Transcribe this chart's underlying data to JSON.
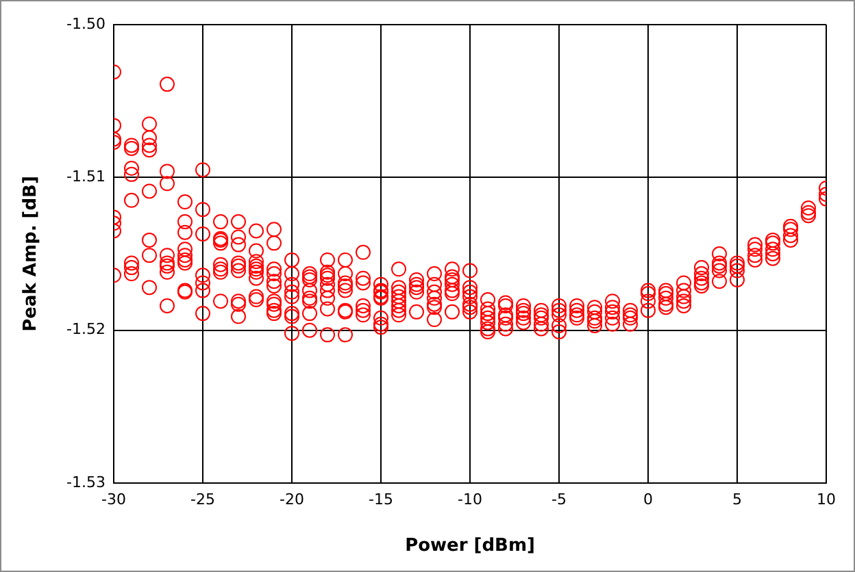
{
  "chart_data": {
    "type": "scatter",
    "xlabel": "Power [dBm]",
    "ylabel": "Peak Amp. [dB]",
    "xlim": [
      -30,
      10
    ],
    "xticks": [
      -30,
      -25,
      -20,
      -15,
      -10,
      -5,
      0,
      5,
      10
    ],
    "ylim": [
      -1.53,
      -1.5
    ],
    "yticks": [
      -1.53,
      -1.52,
      -1.51,
      {
        "value": -1.5,
        "label": "-1.50"
      }
    ],
    "grid": true,
    "legend": false,
    "marker": "circle",
    "series": [
      {
        "color": "#ff0000",
        "x": [
          -30,
          -30,
          -30,
          -30,
          -30,
          -30,
          -30,
          -30,
          -29,
          -29,
          -29,
          -29,
          -29,
          -29,
          -29,
          -29,
          -28,
          -28,
          -28,
          -28,
          -28,
          -28,
          -28,
          -28,
          -27,
          -27,
          -27,
          -27,
          -27,
          -27,
          -27,
          -27,
          -26,
          -26,
          -26,
          -26,
          -26,
          -26,
          -26,
          -26,
          -26,
          -25,
          -25,
          -25,
          -25,
          -25,
          -25,
          -25,
          -24,
          -24,
          -24,
          -24,
          -24,
          -24,
          -24,
          -24,
          -23,
          -23,
          -23,
          -23,
          -23,
          -23,
          -23,
          -23,
          -23,
          -22,
          -22,
          -22,
          -22,
          -22,
          -22,
          -22,
          -22,
          -22,
          -21,
          -21,
          -21,
          -21,
          -21,
          -21,
          -21,
          -21,
          -21,
          -21,
          -20,
          -20,
          -20,
          -20,
          -20,
          -20,
          -20,
          -20,
          -19,
          -19,
          -19,
          -19,
          -19,
          -19,
          -19,
          -19,
          -18,
          -18,
          -18,
          -18,
          -18,
          -18,
          -18,
          -18,
          -18,
          -17,
          -17,
          -17,
          -17,
          -17,
          -17,
          -17,
          -17,
          -16,
          -16,
          -16,
          -16,
          -16,
          -16,
          -15,
          -15,
          -15,
          -15,
          -15,
          -15,
          -15,
          -15,
          -14,
          -14,
          -14,
          -14,
          -14,
          -14,
          -14,
          -14,
          -13,
          -13,
          -13,
          -13,
          -13,
          -12,
          -12,
          -12,
          -12,
          -12,
          -12,
          -12,
          -11,
          -11,
          -11,
          -11,
          -11,
          -11,
          -11,
          -10,
          -10,
          -10,
          -10,
          -10,
          -10,
          -10,
          -9,
          -9,
          -9,
          -9,
          -9,
          -9,
          -9,
          -8,
          -8,
          -8,
          -8,
          -8,
          -8,
          -7,
          -7,
          -7,
          -7,
          -7,
          -6,
          -6,
          -6,
          -6,
          -6,
          -5,
          -5,
          -5,
          -5,
          -5,
          -4,
          -4,
          -4,
          -4,
          -3,
          -3,
          -3,
          -3,
          -3,
          -2,
          -2,
          -2,
          -2,
          -2,
          -1,
          -1,
          -1,
          -1,
          0,
          0,
          0,
          0,
          1,
          1,
          1,
          1,
          1,
          2,
          2,
          2,
          2,
          2,
          3,
          3,
          3,
          3,
          3,
          4,
          4,
          4,
          4,
          4,
          5,
          5,
          5,
          5,
          6,
          6,
          6,
          6,
          7,
          7,
          7,
          7,
          7,
          8,
          8,
          8,
          8,
          9,
          9,
          9,
          10,
          10,
          10
        ],
        "values": [
          -1.5031,
          -1.5066,
          -1.5075,
          -1.5077,
          -1.5126,
          -1.513,
          -1.5135,
          -1.5164,
          -1.5079,
          -1.5081,
          -1.5094,
          -1.5098,
          -1.5115,
          -1.5156,
          -1.5159,
          -1.5163,
          -1.5065,
          -1.5074,
          -1.5079,
          -1.5082,
          -1.5109,
          -1.5141,
          -1.5151,
          -1.5172,
          -1.5039,
          -1.5096,
          -1.5104,
          -1.5151,
          -1.5156,
          -1.5158,
          -1.5162,
          -1.5184,
          -1.5116,
          -1.5129,
          -1.5136,
          -1.5147,
          -1.5151,
          -1.5154,
          -1.5156,
          -1.5174,
          -1.5175,
          -1.5095,
          -1.5121,
          -1.5137,
          -1.5164,
          -1.5169,
          -1.5174,
          -1.5189,
          -1.5129,
          -1.514,
          -1.5141,
          -1.5143,
          -1.5157,
          -1.516,
          -1.5162,
          -1.5181,
          -1.5129,
          -1.5139,
          -1.5144,
          -1.5156,
          -1.5158,
          -1.5161,
          -1.5181,
          -1.5183,
          -1.5191,
          -1.5135,
          -1.5148,
          -1.5155,
          -1.5158,
          -1.516,
          -1.5162,
          -1.5166,
          -1.5178,
          -1.518,
          -1.5134,
          -1.5143,
          -1.516,
          -1.5163,
          -1.5168,
          -1.5171,
          -1.5181,
          -1.5183,
          -1.5187,
          -1.5189,
          -1.5154,
          -1.5163,
          -1.517,
          -1.5175,
          -1.5178,
          -1.5189,
          -1.5191,
          -1.5202,
          -1.5163,
          -1.5165,
          -1.5167,
          -1.5174,
          -1.5179,
          -1.5181,
          -1.5189,
          -1.52,
          -1.5154,
          -1.5162,
          -1.5164,
          -1.5166,
          -1.517,
          -1.5174,
          -1.5179,
          -1.5186,
          -1.5203,
          -1.5154,
          -1.5163,
          -1.5169,
          -1.5171,
          -1.5174,
          -1.5187,
          -1.5188,
          -1.5203,
          -1.5149,
          -1.5166,
          -1.5169,
          -1.5184,
          -1.5187,
          -1.519,
          -1.517,
          -1.5174,
          -1.5175,
          -1.5178,
          -1.5179,
          -1.5192,
          -1.5196,
          -1.5198,
          -1.516,
          -1.5172,
          -1.5175,
          -1.5178,
          -1.5181,
          -1.5184,
          -1.5187,
          -1.519,
          -1.5167,
          -1.517,
          -1.5172,
          -1.5175,
          -1.5188,
          -1.5163,
          -1.517,
          -1.5175,
          -1.5179,
          -1.5183,
          -1.5185,
          -1.5193,
          -1.516,
          -1.5165,
          -1.5167,
          -1.517,
          -1.5174,
          -1.5176,
          -1.5188,
          -1.5161,
          -1.5172,
          -1.5175,
          -1.5178,
          -1.5183,
          -1.5185,
          -1.5188,
          -1.518,
          -1.5186,
          -1.5189,
          -1.5192,
          -1.5195,
          -1.5199,
          -1.5201,
          -1.5182,
          -1.5184,
          -1.519,
          -1.5192,
          -1.5196,
          -1.5199,
          -1.5184,
          -1.5187,
          -1.5189,
          -1.5192,
          -1.5195,
          -1.5187,
          -1.519,
          -1.5192,
          -1.5196,
          -1.5199,
          -1.5184,
          -1.5187,
          -1.519,
          -1.5197,
          -1.5201,
          -1.5184,
          -1.5187,
          -1.519,
          -1.5192,
          -1.5185,
          -1.5188,
          -1.5192,
          -1.5194,
          -1.5197,
          -1.5181,
          -1.5185,
          -1.5188,
          -1.5192,
          -1.5196,
          -1.5187,
          -1.519,
          -1.5192,
          -1.5196,
          -1.5174,
          -1.5176,
          -1.5181,
          -1.5187,
          -1.5174,
          -1.5176,
          -1.5179,
          -1.5183,
          -1.5185,
          -1.5169,
          -1.5174,
          -1.5178,
          -1.5181,
          -1.5184,
          -1.5159,
          -1.5163,
          -1.5166,
          -1.5169,
          -1.5171,
          -1.515,
          -1.5156,
          -1.5158,
          -1.5161,
          -1.5168,
          -1.5156,
          -1.5158,
          -1.5161,
          -1.5167,
          -1.5144,
          -1.5147,
          -1.5151,
          -1.5154,
          -1.5141,
          -1.5143,
          -1.5147,
          -1.515,
          -1.5153,
          -1.5132,
          -1.5134,
          -1.5138,
          -1.5141,
          -1.512,
          -1.5123,
          -1.5125,
          -1.5107,
          -1.5111,
          -1.5114
        ]
      }
    ]
  }
}
